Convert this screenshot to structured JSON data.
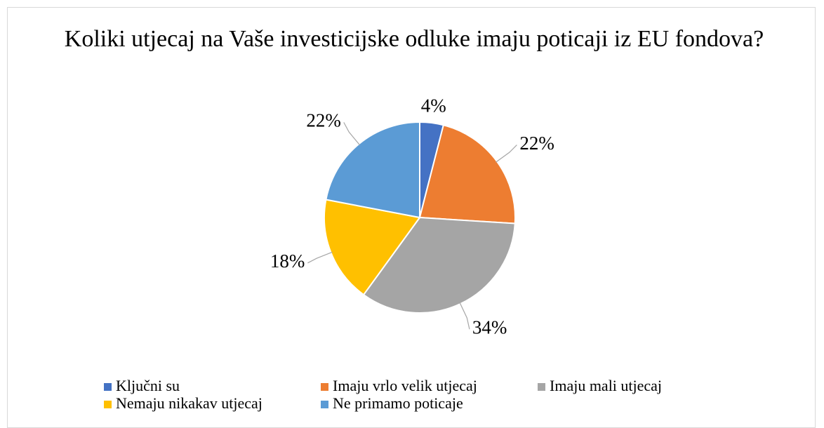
{
  "chart_data": {
    "type": "pie",
    "title": "Koliki utjecaj na Vaše investicijske odluke imaju poticaji iz EU fondova?",
    "categories": [
      "Ključni su",
      "Imaju vrlo velik utjecaj",
      "Imaju mali utjecaj",
      "Nemaju nikakav utjecaj",
      "Ne primamo poticaje"
    ],
    "values": [
      4,
      22,
      34,
      18,
      22
    ],
    "value_labels": [
      "4%",
      "22%",
      "34%",
      "18%",
      "22%"
    ],
    "colors": [
      "#4472c4",
      "#ed7d31",
      "#a5a5a5",
      "#ffc000",
      "#5b9bd5"
    ],
    "legend": "bottom"
  }
}
